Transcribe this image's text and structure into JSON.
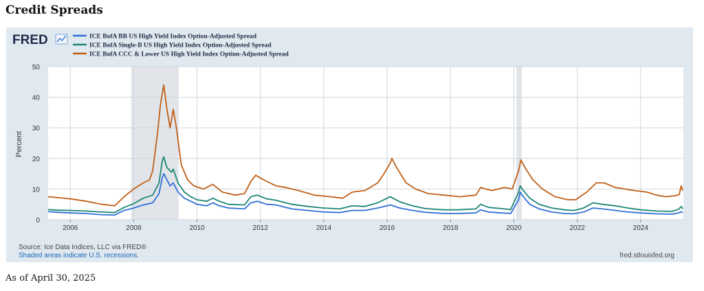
{
  "page": {
    "title": "Credit Spreads",
    "footer": "As of April 30, 2025"
  },
  "fred": {
    "logo_text": "FRED",
    "source": "Source: Ice Data Indices, LLC via FRED®",
    "shaded_note": "Shaded areas indicate U.S. recessions.",
    "site": "fred.stlouisfed.org"
  },
  "colors": {
    "frame_bg": "#e1e9f0",
    "plot_bg": "#ffffff",
    "recession": "#e1e5ea",
    "grid": "#cfd6dd",
    "link": "#1565b6"
  },
  "chart_data": {
    "type": "line",
    "title": "",
    "xlabel": "",
    "ylabel": "Percent",
    "xlim": [
      2005.3,
      2025.35
    ],
    "ylim": [
      0,
      50
    ],
    "yticks": [
      0,
      10,
      20,
      30,
      40,
      50
    ],
    "xticks": [
      2006,
      2008,
      2010,
      2012,
      2014,
      2016,
      2018,
      2020,
      2022,
      2024
    ],
    "grid": true,
    "legend_position": "top-left",
    "recessions": [
      [
        2007.92,
        2009.42
      ],
      [
        2020.08,
        2020.25
      ]
    ],
    "series": [
      {
        "name": "ICE BofA BB US High Yield Index Option-Adjusted Spread",
        "color": "#2f6fd6",
        "points": [
          [
            2005.3,
            2.6
          ],
          [
            2005.6,
            2.4
          ],
          [
            2006.0,
            2.2
          ],
          [
            2006.5,
            2.0
          ],
          [
            2007.0,
            1.6
          ],
          [
            2007.4,
            1.5
          ],
          [
            2007.7,
            3.0
          ],
          [
            2008.0,
            3.8
          ],
          [
            2008.3,
            4.8
          ],
          [
            2008.6,
            5.5
          ],
          [
            2008.8,
            8.5
          ],
          [
            2008.9,
            13.5
          ],
          [
            2008.95,
            15.0
          ],
          [
            2009.05,
            13.0
          ],
          [
            2009.15,
            11.0
          ],
          [
            2009.25,
            12.0
          ],
          [
            2009.4,
            9.0
          ],
          [
            2009.6,
            7.0
          ],
          [
            2009.8,
            6.0
          ],
          [
            2010.0,
            5.0
          ],
          [
            2010.3,
            4.5
          ],
          [
            2010.5,
            5.5
          ],
          [
            2010.7,
            4.5
          ],
          [
            2011.0,
            3.8
          ],
          [
            2011.5,
            3.5
          ],
          [
            2011.7,
            5.5
          ],
          [
            2011.9,
            6.0
          ],
          [
            2012.2,
            5.0
          ],
          [
            2012.5,
            4.8
          ],
          [
            2012.8,
            4.0
          ],
          [
            2013.0,
            3.5
          ],
          [
            2013.5,
            3.0
          ],
          [
            2014.0,
            2.5
          ],
          [
            2014.5,
            2.3
          ],
          [
            2014.9,
            3.0
          ],
          [
            2015.3,
            3.0
          ],
          [
            2015.7,
            3.8
          ],
          [
            2016.1,
            4.8
          ],
          [
            2016.4,
            3.8
          ],
          [
            2016.8,
            3.0
          ],
          [
            2017.2,
            2.4
          ],
          [
            2017.8,
            2.0
          ],
          [
            2018.2,
            2.0
          ],
          [
            2018.8,
            2.2
          ],
          [
            2018.95,
            3.2
          ],
          [
            2019.2,
            2.5
          ],
          [
            2019.6,
            2.2
          ],
          [
            2019.9,
            2.0
          ],
          [
            2020.15,
            6.5
          ],
          [
            2020.2,
            9.0
          ],
          [
            2020.3,
            7.5
          ],
          [
            2020.5,
            5.0
          ],
          [
            2020.8,
            3.5
          ],
          [
            2021.2,
            2.5
          ],
          [
            2021.6,
            2.0
          ],
          [
            2021.9,
            1.9
          ],
          [
            2022.2,
            2.5
          ],
          [
            2022.5,
            3.8
          ],
          [
            2022.8,
            3.5
          ],
          [
            2023.2,
            3.0
          ],
          [
            2023.6,
            2.5
          ],
          [
            2024.0,
            2.2
          ],
          [
            2024.5,
            1.9
          ],
          [
            2025.0,
            1.8
          ],
          [
            2025.2,
            2.2
          ],
          [
            2025.28,
            2.6
          ],
          [
            2025.33,
            2.2
          ]
        ]
      },
      {
        "name": "ICE BofA Single-B US High Yield Index Option-Adjusted Spread",
        "color": "#1c8574",
        "points": [
          [
            2005.3,
            3.3
          ],
          [
            2005.6,
            3.1
          ],
          [
            2006.0,
            3.0
          ],
          [
            2006.5,
            2.8
          ],
          [
            2007.0,
            2.5
          ],
          [
            2007.4,
            2.3
          ],
          [
            2007.7,
            4.0
          ],
          [
            2008.0,
            5.2
          ],
          [
            2008.3,
            7.0
          ],
          [
            2008.6,
            8.0
          ],
          [
            2008.8,
            12.0
          ],
          [
            2008.9,
            19.0
          ],
          [
            2008.95,
            20.5
          ],
          [
            2009.05,
            17.0
          ],
          [
            2009.2,
            15.5
          ],
          [
            2009.25,
            16.5
          ],
          [
            2009.4,
            12.0
          ],
          [
            2009.6,
            9.0
          ],
          [
            2009.8,
            7.5
          ],
          [
            2010.0,
            6.5
          ],
          [
            2010.3,
            6.0
          ],
          [
            2010.5,
            7.0
          ],
          [
            2010.7,
            6.0
          ],
          [
            2011.0,
            5.0
          ],
          [
            2011.5,
            4.8
          ],
          [
            2011.7,
            7.5
          ],
          [
            2011.9,
            8.0
          ],
          [
            2012.2,
            6.8
          ],
          [
            2012.5,
            6.3
          ],
          [
            2012.8,
            5.5
          ],
          [
            2013.0,
            5.0
          ],
          [
            2013.5,
            4.3
          ],
          [
            2014.0,
            3.8
          ],
          [
            2014.5,
            3.5
          ],
          [
            2014.9,
            4.5
          ],
          [
            2015.3,
            4.3
          ],
          [
            2015.7,
            5.5
          ],
          [
            2016.1,
            7.5
          ],
          [
            2016.4,
            5.8
          ],
          [
            2016.8,
            4.5
          ],
          [
            2017.2,
            3.6
          ],
          [
            2017.8,
            3.2
          ],
          [
            2018.2,
            3.2
          ],
          [
            2018.8,
            3.5
          ],
          [
            2018.95,
            5.0
          ],
          [
            2019.2,
            4.0
          ],
          [
            2019.6,
            3.6
          ],
          [
            2019.9,
            3.3
          ],
          [
            2020.15,
            9.0
          ],
          [
            2020.2,
            11.0
          ],
          [
            2020.3,
            9.5
          ],
          [
            2020.5,
            7.0
          ],
          [
            2020.8,
            5.0
          ],
          [
            2021.2,
            3.8
          ],
          [
            2021.6,
            3.2
          ],
          [
            2021.9,
            3.0
          ],
          [
            2022.2,
            3.8
          ],
          [
            2022.5,
            5.5
          ],
          [
            2022.8,
            5.0
          ],
          [
            2023.2,
            4.5
          ],
          [
            2023.6,
            3.8
          ],
          [
            2024.0,
            3.2
          ],
          [
            2024.5,
            2.8
          ],
          [
            2025.0,
            2.7
          ],
          [
            2025.2,
            3.4
          ],
          [
            2025.28,
            4.3
          ],
          [
            2025.33,
            3.5
          ]
        ]
      },
      {
        "name": "ICE BofA CCC & Lower US High Yield Index Option-Adjusted Spread",
        "color": "#c05f16",
        "points": [
          [
            2005.3,
            7.5
          ],
          [
            2005.6,
            7.2
          ],
          [
            2006.0,
            6.8
          ],
          [
            2006.5,
            6.0
          ],
          [
            2007.0,
            5.0
          ],
          [
            2007.4,
            4.5
          ],
          [
            2007.7,
            7.5
          ],
          [
            2008.0,
            10.0
          ],
          [
            2008.3,
            12.0
          ],
          [
            2008.5,
            13.0
          ],
          [
            2008.6,
            16.0
          ],
          [
            2008.75,
            28.0
          ],
          [
            2008.85,
            38.0
          ],
          [
            2008.95,
            44.0
          ],
          [
            2009.05,
            36.0
          ],
          [
            2009.15,
            30.0
          ],
          [
            2009.25,
            36.0
          ],
          [
            2009.35,
            30.0
          ],
          [
            2009.5,
            18.0
          ],
          [
            2009.7,
            13.0
          ],
          [
            2009.9,
            11.0
          ],
          [
            2010.2,
            10.0
          ],
          [
            2010.5,
            11.5
          ],
          [
            2010.8,
            9.0
          ],
          [
            2011.2,
            8.0
          ],
          [
            2011.5,
            8.5
          ],
          [
            2011.7,
            12.5
          ],
          [
            2011.85,
            14.5
          ],
          [
            2012.1,
            13.0
          ],
          [
            2012.5,
            11.0
          ],
          [
            2012.8,
            10.5
          ],
          [
            2013.2,
            9.5
          ],
          [
            2013.7,
            8.0
          ],
          [
            2014.2,
            7.5
          ],
          [
            2014.6,
            7.0
          ],
          [
            2014.9,
            9.0
          ],
          [
            2015.3,
            9.5
          ],
          [
            2015.7,
            12.0
          ],
          [
            2015.9,
            15.0
          ],
          [
            2016.1,
            18.5
          ],
          [
            2016.15,
            20.0
          ],
          [
            2016.3,
            17.0
          ],
          [
            2016.6,
            12.0
          ],
          [
            2016.9,
            10.0
          ],
          [
            2017.3,
            8.5
          ],
          [
            2017.8,
            8.0
          ],
          [
            2018.3,
            7.5
          ],
          [
            2018.8,
            8.0
          ],
          [
            2018.95,
            10.5
          ],
          [
            2019.3,
            9.5
          ],
          [
            2019.7,
            10.5
          ],
          [
            2019.95,
            10.0
          ],
          [
            2020.15,
            16.0
          ],
          [
            2020.22,
            19.5
          ],
          [
            2020.35,
            17.0
          ],
          [
            2020.6,
            13.0
          ],
          [
            2020.9,
            10.0
          ],
          [
            2021.3,
            7.5
          ],
          [
            2021.7,
            6.5
          ],
          [
            2021.95,
            6.5
          ],
          [
            2022.3,
            9.0
          ],
          [
            2022.6,
            12.0
          ],
          [
            2022.85,
            12.0
          ],
          [
            2023.2,
            10.5
          ],
          [
            2023.5,
            10.0
          ],
          [
            2023.8,
            9.5
          ],
          [
            2024.2,
            9.0
          ],
          [
            2024.5,
            8.0
          ],
          [
            2024.8,
            7.5
          ],
          [
            2025.1,
            7.8
          ],
          [
            2025.22,
            8.2
          ],
          [
            2025.28,
            11.0
          ],
          [
            2025.33,
            9.5
          ]
        ]
      }
    ]
  }
}
